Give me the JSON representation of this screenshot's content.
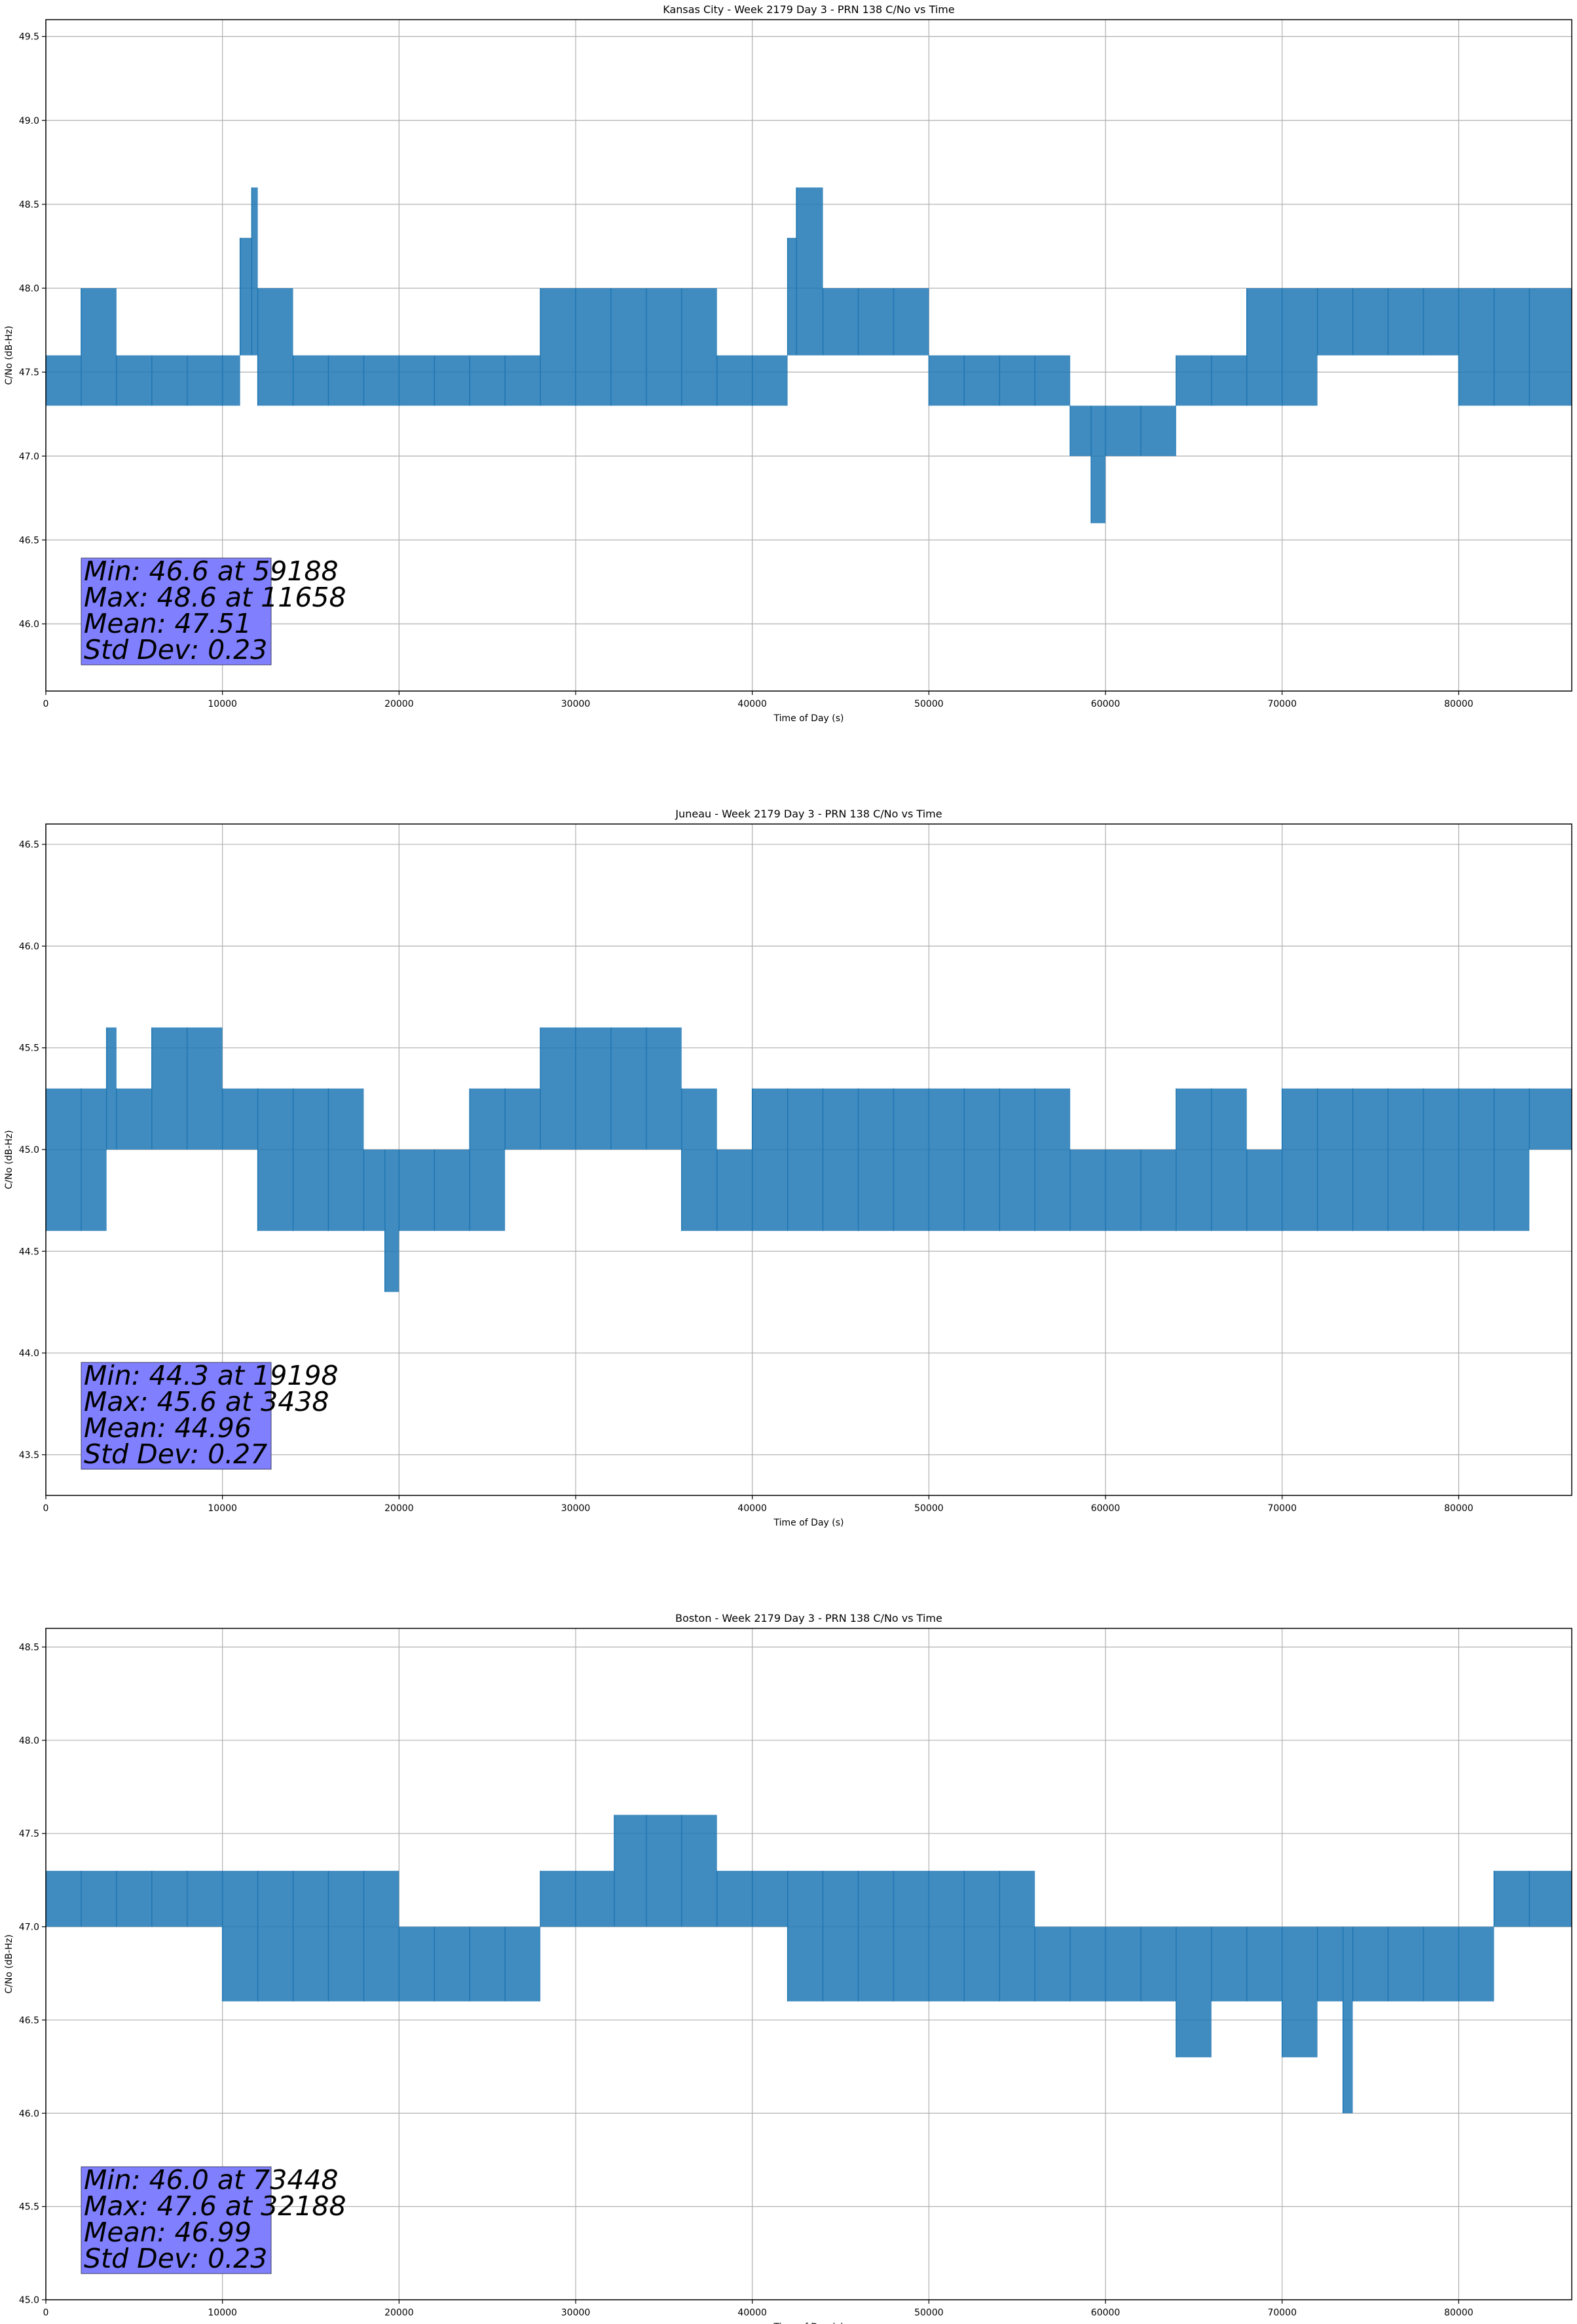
{
  "chart_data": [
    {
      "type": "line",
      "title": "Kansas City - Week 2179 Day 3 - PRN 138 C/No vs Time",
      "xlabel": "Time of Day (s)",
      "ylabel": "C/No (dB-Hz)",
      "xlim": [
        0,
        86400
      ],
      "ylim": [
        45.6,
        49.6
      ],
      "xticks": [
        0,
        10000,
        20000,
        30000,
        40000,
        50000,
        60000,
        70000,
        80000
      ],
      "xtick_labels": [
        "0",
        "10000",
        "20000",
        "30000",
        "40000",
        "50000",
        "60000",
        "70000",
        "80000"
      ],
      "yticks": [
        46.0,
        46.5,
        47.0,
        47.5,
        48.0,
        48.5,
        49.0,
        49.5
      ],
      "ytick_labels": [
        "46.0",
        "46.5",
        "47.0",
        "47.5",
        "48.0",
        "48.5",
        "49.0",
        "49.5"
      ],
      "grid": true,
      "line_color": "#1f77b4",
      "band_series": [
        [
          0,
          47.3,
          47.6
        ],
        [
          2000,
          47.3,
          48.0
        ],
        [
          4000,
          47.3,
          47.6
        ],
        [
          6000,
          47.3,
          47.6
        ],
        [
          8000,
          47.3,
          47.6
        ],
        [
          10000,
          47.3,
          47.6
        ],
        [
          11000,
          47.6,
          48.3
        ],
        [
          11658,
          47.6,
          48.6
        ],
        [
          12000,
          47.3,
          48.0
        ],
        [
          14000,
          47.3,
          47.6
        ],
        [
          16000,
          47.3,
          47.6
        ],
        [
          18000,
          47.3,
          47.6
        ],
        [
          20000,
          47.3,
          47.6
        ],
        [
          22000,
          47.3,
          47.6
        ],
        [
          24000,
          47.3,
          47.6
        ],
        [
          26000,
          47.3,
          47.6
        ],
        [
          28000,
          47.3,
          48.0
        ],
        [
          30000,
          47.3,
          48.0
        ],
        [
          32000,
          47.3,
          48.0
        ],
        [
          34000,
          47.3,
          48.0
        ],
        [
          36000,
          47.3,
          48.0
        ],
        [
          38000,
          47.3,
          47.6
        ],
        [
          40000,
          47.3,
          47.6
        ],
        [
          42000,
          47.6,
          48.3
        ],
        [
          42500,
          47.6,
          48.6
        ],
        [
          44000,
          47.6,
          48.0
        ],
        [
          46000,
          47.6,
          48.0
        ],
        [
          48000,
          47.6,
          48.0
        ],
        [
          50000,
          47.3,
          47.6
        ],
        [
          52000,
          47.3,
          47.6
        ],
        [
          54000,
          47.3,
          47.6
        ],
        [
          56000,
          47.3,
          47.6
        ],
        [
          58000,
          47.0,
          47.3
        ],
        [
          59188,
          46.6,
          47.3
        ],
        [
          60000,
          47.0,
          47.3
        ],
        [
          62000,
          47.0,
          47.3
        ],
        [
          64000,
          47.3,
          47.6
        ],
        [
          66000,
          47.3,
          47.6
        ],
        [
          68000,
          47.3,
          48.0
        ],
        [
          70000,
          47.3,
          48.0
        ],
        [
          72000,
          47.6,
          48.0
        ],
        [
          74000,
          47.6,
          48.0
        ],
        [
          76000,
          47.6,
          48.0
        ],
        [
          78000,
          47.6,
          48.0
        ],
        [
          80000,
          47.3,
          48.0
        ],
        [
          82000,
          47.3,
          48.0
        ],
        [
          84000,
          47.3,
          48.0
        ],
        [
          86400,
          47.6,
          48.0
        ]
      ],
      "stats": {
        "min": "Min: 46.6 at 59188",
        "max": "Max: 48.6 at 11658",
        "mean": "Mean: 47.51",
        "std": "Std Dev: 0.23"
      }
    },
    {
      "type": "line",
      "title": "Juneau - Week 2179 Day 3 - PRN 138 C/No vs Time",
      "xlabel": "Time of Day (s)",
      "ylabel": "C/No (dB-Hz)",
      "xlim": [
        0,
        86400
      ],
      "ylim": [
        43.3,
        46.6
      ],
      "xticks": [
        0,
        10000,
        20000,
        30000,
        40000,
        50000,
        60000,
        70000,
        80000
      ],
      "xtick_labels": [
        "0",
        "10000",
        "20000",
        "30000",
        "40000",
        "50000",
        "60000",
        "70000",
        "80000"
      ],
      "yticks": [
        43.5,
        44.0,
        44.5,
        45.0,
        45.5,
        46.0,
        46.5
      ],
      "ytick_labels": [
        "43.5",
        "44.0",
        "44.5",
        "45.0",
        "45.5",
        "46.0",
        "46.5"
      ],
      "grid": true,
      "line_color": "#1f77b4",
      "band_series": [
        [
          0,
          44.6,
          45.3
        ],
        [
          2000,
          44.6,
          45.3
        ],
        [
          3438,
          45.0,
          45.6
        ],
        [
          4000,
          45.0,
          45.3
        ],
        [
          6000,
          45.0,
          45.6
        ],
        [
          8000,
          45.0,
          45.6
        ],
        [
          10000,
          45.0,
          45.3
        ],
        [
          12000,
          44.6,
          45.3
        ],
        [
          14000,
          44.6,
          45.3
        ],
        [
          16000,
          44.6,
          45.3
        ],
        [
          18000,
          44.6,
          45.0
        ],
        [
          19198,
          44.3,
          45.0
        ],
        [
          20000,
          44.6,
          45.0
        ],
        [
          22000,
          44.6,
          45.0
        ],
        [
          24000,
          44.6,
          45.3
        ],
        [
          26000,
          45.0,
          45.3
        ],
        [
          28000,
          45.0,
          45.6
        ],
        [
          30000,
          45.0,
          45.6
        ],
        [
          32000,
          45.0,
          45.6
        ],
        [
          34000,
          45.0,
          45.6
        ],
        [
          36000,
          44.6,
          45.3
        ],
        [
          38000,
          44.6,
          45.0
        ],
        [
          40000,
          44.6,
          45.3
        ],
        [
          42000,
          44.6,
          45.3
        ],
        [
          44000,
          44.6,
          45.3
        ],
        [
          46000,
          44.6,
          45.3
        ],
        [
          48000,
          44.6,
          45.3
        ],
        [
          50000,
          44.6,
          45.3
        ],
        [
          52000,
          44.6,
          45.3
        ],
        [
          54000,
          44.6,
          45.3
        ],
        [
          56000,
          44.6,
          45.3
        ],
        [
          58000,
          44.6,
          45.0
        ],
        [
          60000,
          44.6,
          45.0
        ],
        [
          62000,
          44.6,
          45.0
        ],
        [
          64000,
          44.6,
          45.3
        ],
        [
          66000,
          44.6,
          45.3
        ],
        [
          68000,
          44.6,
          45.0
        ],
        [
          70000,
          44.6,
          45.3
        ],
        [
          72000,
          44.6,
          45.3
        ],
        [
          74000,
          44.6,
          45.3
        ],
        [
          76000,
          44.6,
          45.3
        ],
        [
          78000,
          44.6,
          45.3
        ],
        [
          80000,
          44.6,
          45.3
        ],
        [
          82000,
          44.6,
          45.3
        ],
        [
          84000,
          45.0,
          45.3
        ],
        [
          86400,
          45.0,
          45.3
        ]
      ],
      "stats": {
        "min": "Min: 44.3 at 19198",
        "max": "Max: 45.6 at 3438",
        "mean": "Mean: 44.96",
        "std": "Std Dev: 0.27"
      }
    },
    {
      "type": "line",
      "title": "Boston - Week 2179 Day 3 - PRN 138 C/No vs Time",
      "xlabel": "Time of Day (s)",
      "ylabel": "C/No (dB-Hz)",
      "xlim": [
        0,
        86400
      ],
      "ylim": [
        45.0,
        48.6
      ],
      "xticks": [
        0,
        10000,
        20000,
        30000,
        40000,
        50000,
        60000,
        70000,
        80000
      ],
      "xtick_labels": [
        "0",
        "10000",
        "20000",
        "30000",
        "40000",
        "50000",
        "60000",
        "70000",
        "80000"
      ],
      "yticks": [
        45.0,
        45.5,
        46.0,
        46.5,
        47.0,
        47.5,
        48.0,
        48.5
      ],
      "ytick_labels": [
        "45.0",
        "45.5",
        "46.0",
        "46.5",
        "47.0",
        "47.5",
        "48.0",
        "48.5"
      ],
      "grid": true,
      "line_color": "#1f77b4",
      "band_series": [
        [
          0,
          47.0,
          47.3
        ],
        [
          2000,
          47.0,
          47.3
        ],
        [
          4000,
          47.0,
          47.3
        ],
        [
          6000,
          47.0,
          47.3
        ],
        [
          8000,
          47.0,
          47.3
        ],
        [
          10000,
          46.6,
          47.3
        ],
        [
          12000,
          46.6,
          47.3
        ],
        [
          14000,
          46.6,
          47.3
        ],
        [
          16000,
          46.6,
          47.3
        ],
        [
          18000,
          46.6,
          47.3
        ],
        [
          20000,
          46.6,
          47.0
        ],
        [
          22000,
          46.6,
          47.0
        ],
        [
          24000,
          46.6,
          47.0
        ],
        [
          26000,
          46.6,
          47.0
        ],
        [
          28000,
          47.0,
          47.3
        ],
        [
          30000,
          47.0,
          47.3
        ],
        [
          32188,
          47.0,
          47.6
        ],
        [
          34000,
          47.0,
          47.6
        ],
        [
          36000,
          47.0,
          47.6
        ],
        [
          38000,
          47.0,
          47.3
        ],
        [
          40000,
          47.0,
          47.3
        ],
        [
          42000,
          46.6,
          47.3
        ],
        [
          44000,
          46.6,
          47.3
        ],
        [
          46000,
          46.6,
          47.3
        ],
        [
          48000,
          46.6,
          47.3
        ],
        [
          50000,
          46.6,
          47.3
        ],
        [
          52000,
          46.6,
          47.3
        ],
        [
          54000,
          46.6,
          47.3
        ],
        [
          56000,
          46.6,
          47.0
        ],
        [
          58000,
          46.6,
          47.0
        ],
        [
          60000,
          46.6,
          47.0
        ],
        [
          62000,
          46.6,
          47.0
        ],
        [
          64000,
          46.3,
          47.0
        ],
        [
          66000,
          46.6,
          47.0
        ],
        [
          68000,
          46.6,
          47.0
        ],
        [
          70000,
          46.3,
          47.0
        ],
        [
          72000,
          46.6,
          47.0
        ],
        [
          73448,
          46.0,
          47.0
        ],
        [
          74000,
          46.6,
          47.0
        ],
        [
          76000,
          46.6,
          47.0
        ],
        [
          78000,
          46.6,
          47.0
        ],
        [
          80000,
          46.6,
          47.0
        ],
        [
          82000,
          47.0,
          47.3
        ],
        [
          84000,
          47.0,
          47.3
        ],
        [
          86400,
          47.0,
          47.3
        ]
      ],
      "stats": {
        "min": "Min: 46.0 at 73448",
        "max": "Max: 47.6 at 32188",
        "mean": "Mean: 46.99",
        "std": "Std Dev: 0.23"
      }
    }
  ]
}
